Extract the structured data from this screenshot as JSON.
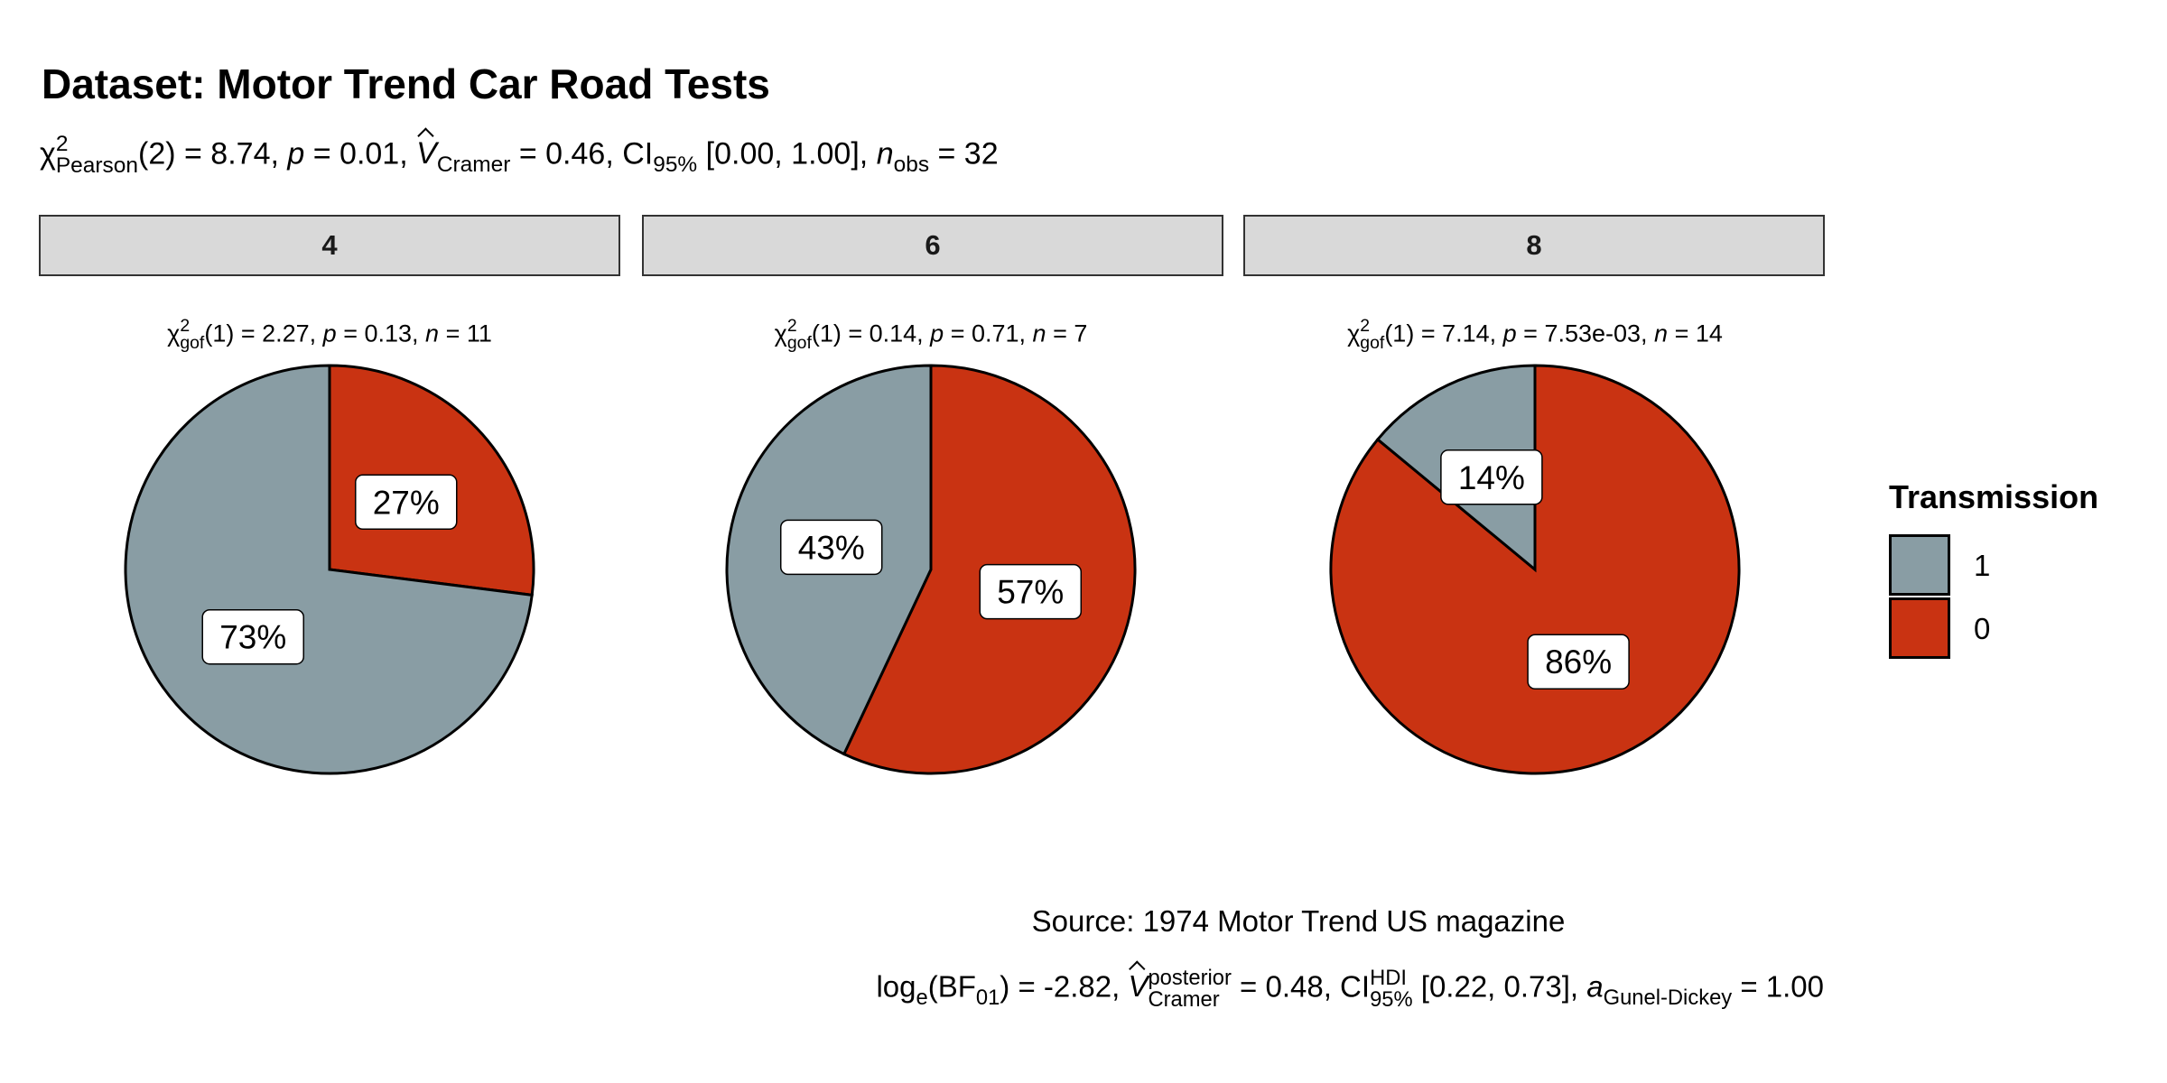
{
  "chart_data": {
    "type": "pie",
    "title": "Dataset: Motor Trend Car Road Tests",
    "subtitle_tokens": [
      {
        "t": "text",
        "s": "χ"
      },
      {
        "t": "subsup",
        "sub": "Pearson",
        "sup": "2"
      },
      {
        "t": "text",
        "s": "(2) = 8.74, "
      },
      {
        "t": "i",
        "s": "p"
      },
      {
        "t": "text",
        "s": " = 0.01, "
      },
      {
        "t": "hat",
        "s": "V"
      },
      {
        "t": "sub",
        "s": "Cramer"
      },
      {
        "t": "text",
        "s": " = 0.46, CI"
      },
      {
        "t": "sub",
        "s": "95%"
      },
      {
        "t": "text",
        "s": " [0.00, 1.00], "
      },
      {
        "t": "i",
        "s": "n"
      },
      {
        "t": "sub",
        "s": "obs"
      },
      {
        "t": "text",
        "s": " = 32"
      }
    ],
    "facet_variable": "cyl",
    "legend": {
      "title": "Transmission",
      "position": "right",
      "entries": [
        {
          "label": "1",
          "color": "#899DA4"
        },
        {
          "label": "0",
          "color": "#C93312"
        }
      ]
    },
    "facets": [
      {
        "label": "4",
        "gof": {
          "stat": "2.27",
          "df": "1",
          "p": "0.13",
          "n": "11"
        },
        "slices": [
          {
            "category": "0",
            "percent": 27,
            "label": "27%",
            "color": "#C93312"
          },
          {
            "category": "1",
            "percent": 73,
            "label": "73%",
            "color": "#899DA4"
          }
        ]
      },
      {
        "label": "6",
        "gof": {
          "stat": "0.14",
          "df": "1",
          "p": "0.71",
          "n": "7"
        },
        "slices": [
          {
            "category": "0",
            "percent": 57,
            "label": "57%",
            "color": "#C93312"
          },
          {
            "category": "1",
            "percent": 43,
            "label": "43%",
            "color": "#899DA4"
          }
        ]
      },
      {
        "label": "8",
        "gof": {
          "stat": "7.14",
          "df": "1",
          "p": "7.53e-03",
          "n": "14"
        },
        "slices": [
          {
            "category": "0",
            "percent": 86,
            "label": "86%",
            "color": "#C93312"
          },
          {
            "category": "1",
            "percent": 14,
            "label": "14%",
            "color": "#899DA4"
          }
        ]
      }
    ],
    "caption": "Source: 1974 Motor Trend US magazine",
    "bayes_tokens": [
      {
        "t": "text",
        "s": "log"
      },
      {
        "t": "sub",
        "s": "e"
      },
      {
        "t": "text",
        "s": "(BF"
      },
      {
        "t": "sub",
        "s": "01"
      },
      {
        "t": "text",
        "s": ") = -2.82, "
      },
      {
        "t": "hat",
        "s": "V"
      },
      {
        "t": "subsup",
        "sub": "Cramer",
        "sup": "posterior"
      },
      {
        "t": "text",
        "s": " = 0.48, CI"
      },
      {
        "t": "subsup",
        "sub": "95%",
        "sup": "HDI"
      },
      {
        "t": "text",
        "s": " [0.22, 0.73], "
      },
      {
        "t": "i",
        "s": "a"
      },
      {
        "t": "sub",
        "s": "Gunel-Dickey"
      },
      {
        "t": "text",
        "s": " = 1.00"
      }
    ]
  }
}
